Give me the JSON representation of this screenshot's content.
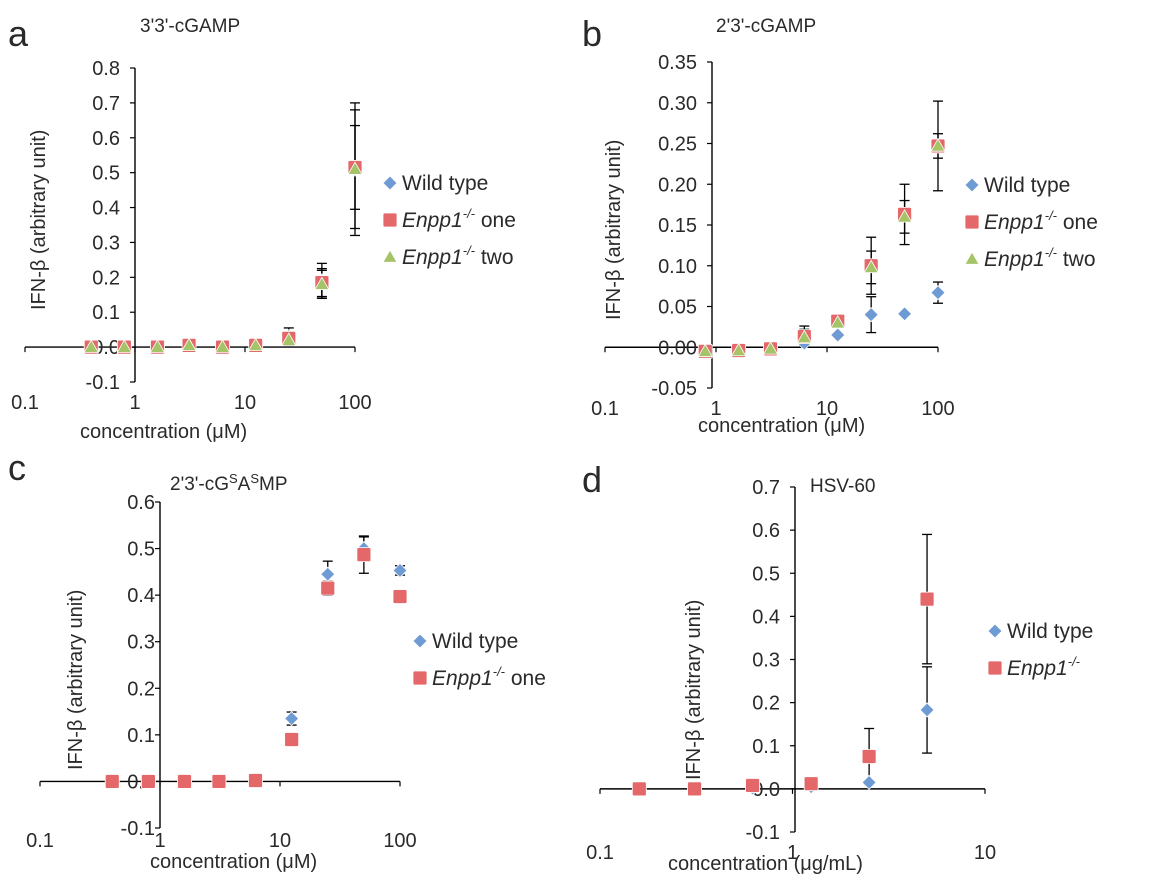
{
  "colors": {
    "wild_type": "#6f9bd4",
    "enpp1_one": "#e4686a",
    "enpp1_two": "#a5c467",
    "axis": "#000000"
  },
  "chart_data": [
    {
      "panel": "a",
      "type": "scatter",
      "title": "3'3'-cGAMP",
      "xlabel": "concentration (μM)",
      "ylabel": "IFN-β (arbitrary unit)",
      "xscale": "log",
      "xlim": [
        0.1,
        100
      ],
      "ylim": [
        -0.1,
        0.8
      ],
      "yticks": [
        "-0.1",
        "0.0",
        "0.1",
        "0.2",
        "0.3",
        "0.4",
        "0.5",
        "0.6",
        "0.7",
        "0.8"
      ],
      "xticks": [
        "0.1",
        "1",
        "10",
        "100"
      ],
      "legend_position": "right",
      "series": [
        {
          "name": "Wild type",
          "label_main": "Wild type",
          "label_sup": "",
          "label_tail": "",
          "color": "#6f9bd4",
          "marker": "diamond",
          "x": [
            0.4,
            0.8,
            1.6,
            3.1,
            6.25,
            12.5,
            25,
            50,
            100
          ],
          "y": [
            0.0,
            0.0,
            0.0,
            0.005,
            0.0,
            0.005,
            0.03,
            0.19,
            0.51
          ],
          "err": [
            0.004,
            0.004,
            0.004,
            0.004,
            0.004,
            0.008,
            0.025,
            0.05,
            0.19
          ]
        },
        {
          "name": "Enpp1-/- one",
          "label_main": "Enpp1",
          "label_sup": "-/-",
          "label_tail": " one",
          "color": "#e4686a",
          "marker": "square",
          "x": [
            0.4,
            0.8,
            1.6,
            3.1,
            6.25,
            12.5,
            25,
            50,
            100
          ],
          "y": [
            0.0,
            0.0,
            0.0,
            0.005,
            0.0,
            0.005,
            0.025,
            0.185,
            0.515
          ],
          "err": [
            0.004,
            0.004,
            0.004,
            0.004,
            0.004,
            0.006,
            0.015,
            0.04,
            0.12
          ]
        },
        {
          "name": "Enpp1-/- two",
          "label_main": "Enpp1",
          "label_sup": "-/-",
          "label_tail": " two",
          "color": "#a5c467",
          "marker": "triangle",
          "x": [
            0.4,
            0.8,
            1.6,
            3.1,
            6.25,
            12.5,
            25,
            50,
            100
          ],
          "y": [
            0.0,
            0.0,
            0.0,
            0.005,
            0.0,
            0.005,
            0.02,
            0.18,
            0.51
          ],
          "err": [
            0.004,
            0.004,
            0.004,
            0.004,
            0.004,
            0.006,
            0.015,
            0.04,
            0.17
          ]
        }
      ]
    },
    {
      "panel": "b",
      "type": "scatter",
      "title": "2'3'-cGAMP",
      "xlabel": "concentration (μM)",
      "ylabel": "IFN-β (arbitrary unit)",
      "xscale": "log",
      "xlim": [
        0.1,
        100
      ],
      "ylim": [
        -0.05,
        0.35
      ],
      "yticks": [
        "-0.05",
        "0.00",
        "0.05",
        "0.10",
        "0.15",
        "0.20",
        "0.25",
        "0.30",
        "0.35"
      ],
      "xticks": [
        "0.1",
        "1",
        "10",
        "100"
      ],
      "legend_position": "right",
      "series": [
        {
          "name": "Wild type",
          "label_main": "Wild type",
          "label_sup": "",
          "label_tail": "",
          "color": "#6f9bd4",
          "marker": "diamond",
          "x": [
            0.8,
            1.6,
            3.1,
            6.25,
            12.5,
            25,
            50,
            100
          ],
          "y": [
            -0.006,
            -0.004,
            -0.002,
            0.005,
            0.015,
            0.04,
            0.041,
            0.067
          ],
          "err": [
            0.002,
            0.002,
            0.002,
            0.005,
            0.005,
            0.022,
            0.004,
            0.013
          ]
        },
        {
          "name": "Enpp1-/- one",
          "label_main": "Enpp1",
          "label_sup": "-/-",
          "label_tail": " one",
          "color": "#e4686a",
          "marker": "square",
          "x": [
            0.8,
            1.6,
            3.1,
            6.25,
            12.5,
            25,
            50,
            100
          ],
          "y": [
            -0.005,
            -0.004,
            -0.002,
            0.013,
            0.032,
            0.1,
            0.163,
            0.247
          ],
          "err": [
            0.002,
            0.002,
            0.002,
            0.013,
            0.005,
            0.035,
            0.037,
            0.055
          ]
        },
        {
          "name": "Enpp1-/- two",
          "label_main": "Enpp1",
          "label_sup": "-/-",
          "label_tail": " two",
          "color": "#a5c467",
          "marker": "triangle",
          "x": [
            0.8,
            1.6,
            3.1,
            6.25,
            12.5,
            25,
            50,
            100
          ],
          "y": [
            -0.005,
            -0.004,
            -0.002,
            0.012,
            0.03,
            0.098,
            0.16,
            0.247
          ],
          "err": [
            0.002,
            0.002,
            0.002,
            0.01,
            0.005,
            0.02,
            0.02,
            0.015
          ]
        }
      ]
    },
    {
      "panel": "c",
      "type": "scatter",
      "title_main": "2'3'-cG",
      "title_sup1": "S",
      "title_mid": "A",
      "title_sup2": "S",
      "title_tail": "MP",
      "xlabel": "concentration (μM)",
      "ylabel": "IFN-β (arbitrary unit)",
      "xscale": "log",
      "xlim": [
        0.1,
        100
      ],
      "ylim": [
        -0.1,
        0.6
      ],
      "yticks": [
        "-0.1",
        "0.0",
        "0.1",
        "0.2",
        "0.3",
        "0.4",
        "0.5",
        "0.6"
      ],
      "xticks": [
        "0.1",
        "1",
        "10",
        "100"
      ],
      "legend_position": "right",
      "series": [
        {
          "name": "Wild type",
          "label_main": "Wild type",
          "label_sup": "",
          "label_tail": "",
          "color": "#6f9bd4",
          "marker": "diamond",
          "x": [
            0.4,
            0.8,
            1.6,
            3.1,
            6.25,
            12.5,
            25,
            50,
            100
          ],
          "y": [
            0.0,
            0.0,
            0.0,
            0.0,
            0.002,
            0.135,
            0.445,
            0.5,
            0.453
          ],
          "err": [
            0.003,
            0.003,
            0.003,
            0.003,
            0.003,
            0.014,
            0.028,
            0.025,
            0.01
          ]
        },
        {
          "name": "Enpp1-/- one",
          "label_main": "Enpp1",
          "label_sup": "-/-",
          "label_tail": " one",
          "color": "#e4686a",
          "marker": "square",
          "x": [
            0.4,
            0.8,
            1.6,
            3.1,
            6.25,
            12.5,
            25,
            50,
            100
          ],
          "y": [
            0.0,
            0.0,
            0.0,
            0.0,
            0.002,
            0.09,
            0.415,
            0.487,
            0.397
          ],
          "err": [
            0.003,
            0.003,
            0.003,
            0.003,
            0.003,
            0.004,
            0.015,
            0.04,
            0.004
          ]
        }
      ]
    },
    {
      "panel": "d",
      "type": "scatter",
      "title": "HSV-60",
      "xlabel": "concentration (μg/mL)",
      "ylabel": "IFN-β (arbitrary unit)",
      "xscale": "log",
      "xlim": [
        0.1,
        10
      ],
      "ylim": [
        -0.1,
        0.7
      ],
      "yticks": [
        "-0.1",
        "0.0",
        "0.1",
        "0.2",
        "0.3",
        "0.4",
        "0.5",
        "0.6",
        "0.7"
      ],
      "xticks": [
        "0.1",
        "1",
        "10"
      ],
      "legend_position": "right",
      "series": [
        {
          "name": "Wild type",
          "label_main": "Wild type",
          "label_sup": "",
          "label_tail": "",
          "color": "#6f9bd4",
          "marker": "diamond",
          "x": [
            0.16,
            0.31,
            0.62,
            1.25,
            2.5,
            5
          ],
          "y": [
            0.0,
            0.0,
            0.002,
            0.005,
            0.015,
            0.183
          ],
          "err": [
            0.002,
            0.002,
            0.002,
            0.004,
            0.006,
            0.1
          ]
        },
        {
          "name": "Enpp1-/-",
          "label_main": "Enpp1",
          "label_sup": "-/-",
          "label_tail": "",
          "color": "#e4686a",
          "marker": "square",
          "x": [
            0.16,
            0.31,
            0.62,
            1.25,
            2.5,
            5
          ],
          "y": [
            0.0,
            0.0,
            0.008,
            0.012,
            0.075,
            0.44
          ],
          "err": [
            0.002,
            0.002,
            0.004,
            0.006,
            0.065,
            0.15
          ]
        }
      ]
    }
  ]
}
